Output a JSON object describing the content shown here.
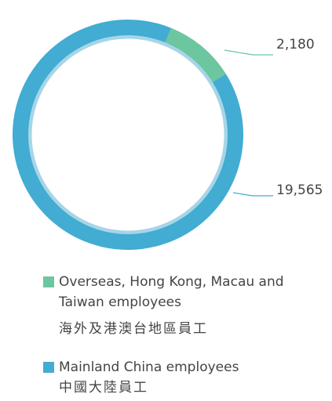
{
  "chart_data": {
    "type": "donut",
    "categories": [
      "Overseas, Hong Kong, Macau and Taiwan employees",
      "Mainland China employees"
    ],
    "categories_zh": [
      "海外及港澳台地區員工",
      "中國大陸員工"
    ],
    "values": [
      2180,
      19565
    ],
    "value_labels": [
      "2,180",
      "19,565"
    ],
    "colors": [
      "#6cc6a0",
      "#42acd2"
    ]
  }
}
